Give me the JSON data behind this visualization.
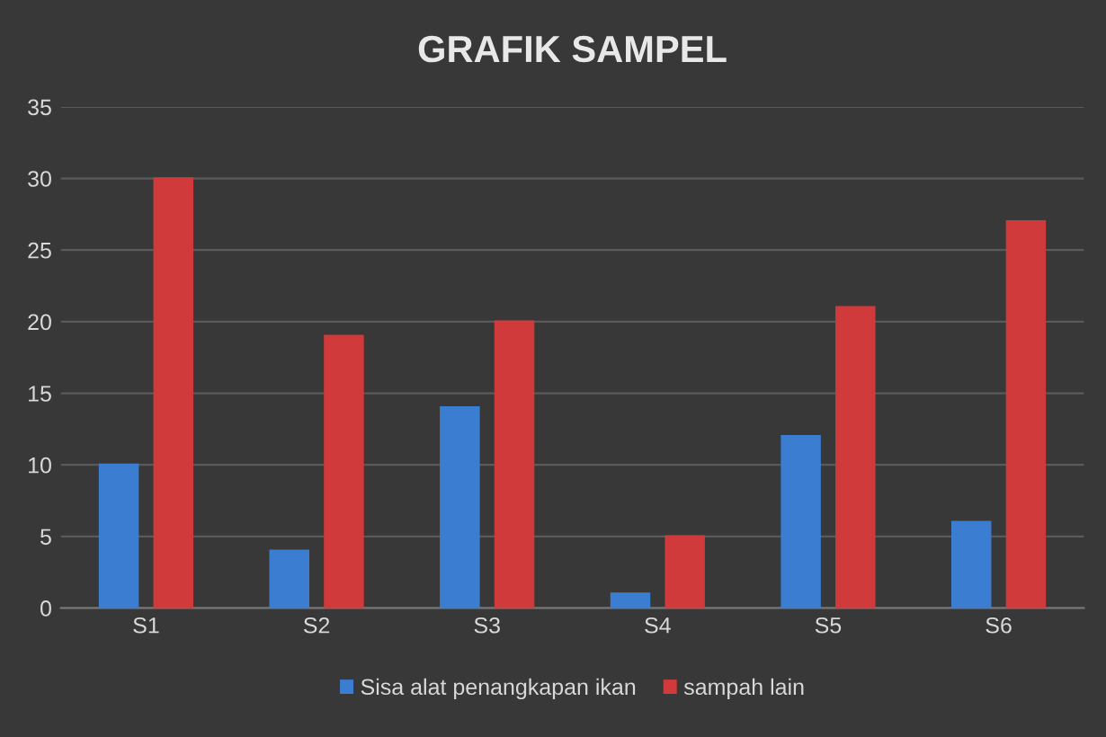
{
  "chart_data": {
    "type": "bar",
    "title": "GRAFIK SAMPEL",
    "categories": [
      "S1",
      "S2",
      "S3",
      "S4",
      "S5",
      "S6"
    ],
    "series": [
      {
        "name": "Sisa alat penangkapan ikan",
        "color": "#3b7dd0",
        "values": [
          10,
          4,
          14,
          1,
          12,
          6
        ]
      },
      {
        "name": "sampah lain",
        "color": "#d03a3a",
        "values": [
          30,
          19,
          20,
          5,
          21,
          27
        ]
      }
    ],
    "ylim": [
      0,
      35
    ],
    "yticks": [
      0,
      5,
      10,
      15,
      20,
      25,
      30,
      35
    ],
    "grid": "y",
    "legend": "bottom"
  }
}
